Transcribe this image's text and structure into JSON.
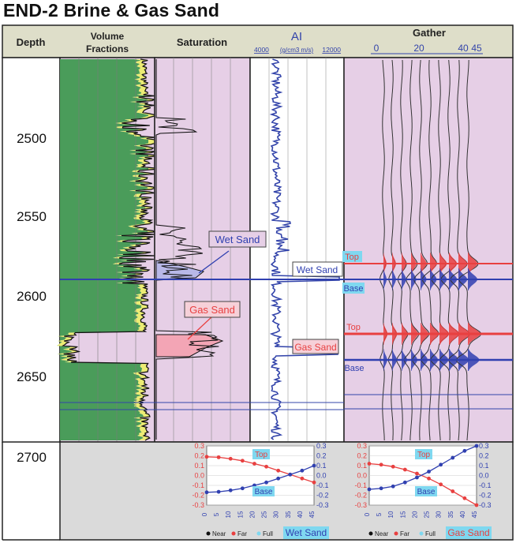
{
  "title": "END-2 Brine & Gas Sand",
  "headers": {
    "depth": "Depth",
    "volume_line1": "Volume",
    "volume_line2": "Fractions",
    "saturation": "Saturation",
    "ai": "AI",
    "ai_scale_left": "4000",
    "ai_scale_unit": "(g/cm3 m/s)",
    "ai_scale_right": "12000",
    "gather": "Gather",
    "gather_ticks": [
      "0",
      "20",
      "40",
      "45"
    ]
  },
  "depth_ticks": [
    "2500",
    "2550",
    "2600",
    "2650",
    "2700"
  ],
  "annotations": {
    "wet_sand_sat": "Wet Sand",
    "wet_sand_ai": "Wet Sand",
    "gas_sand_sat": "Gas Sand",
    "gas_sand_ai": "Gas Sand",
    "top_wet": "Top",
    "base_wet": "Base",
    "top_gas": "Top",
    "base_gas": "Base"
  },
  "colors": {
    "header_bg": "#dedec9",
    "green": "#4a9c5a",
    "yellow": "#ecec74",
    "lavender": "#e6cfe6",
    "ai_blue": "#3344aa",
    "wave_red": "#e84040",
    "wave_blue": "#3040b0",
    "grey_bg": "#dadada",
    "label_cyan": "#7fd8f0"
  },
  "chart_data": [
    {
      "type": "line",
      "title": "Wet Sand",
      "x": [
        0,
        5,
        10,
        15,
        20,
        25,
        30,
        35,
        40,
        45
      ],
      "ylim": [
        -0.3,
        0.3
      ],
      "series": [
        {
          "name": "Top",
          "values": [
            0.19,
            0.185,
            0.17,
            0.15,
            0.12,
            0.09,
            0.05,
            0.01,
            -0.03,
            -0.07
          ]
        },
        {
          "name": "Base",
          "values": [
            -0.17,
            -0.165,
            -0.15,
            -0.13,
            -0.1,
            -0.07,
            -0.03,
            0.01,
            0.05,
            0.1
          ]
        }
      ],
      "legend": [
        "Near",
        "Far",
        "Full"
      ],
      "legend_position": "bottom"
    },
    {
      "type": "line",
      "title": "Gas Sand",
      "x": [
        0,
        5,
        10,
        15,
        20,
        25,
        30,
        35,
        40,
        45
      ],
      "ylim": [
        -0.3,
        0.3
      ],
      "series": [
        {
          "name": "Top",
          "values": [
            0.12,
            0.11,
            0.09,
            0.06,
            0.02,
            -0.03,
            -0.09,
            -0.16,
            -0.23,
            -0.3
          ]
        },
        {
          "name": "Base",
          "values": [
            -0.14,
            -0.13,
            -0.11,
            -0.07,
            -0.02,
            0.04,
            0.11,
            0.18,
            0.25,
            0.3
          ]
        }
      ],
      "legend": [
        "Near",
        "Far",
        "Full"
      ],
      "legend_position": "bottom"
    }
  ]
}
